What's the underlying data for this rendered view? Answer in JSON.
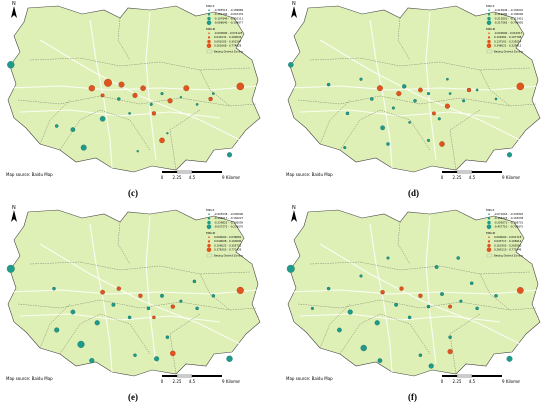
{
  "colors": {
    "land": "#dff0b6",
    "road": "#f2f2d8",
    "boundary": "#444444",
    "teal": "#1e9a8a",
    "orange": "#e2541e"
  },
  "panels": [
    {
      "id": "c",
      "caption": "(c)",
      "source": "Map source: Baidu Map",
      "scale_ticks": [
        "0",
        "2.25",
        "4.5",
        "9 Kilometers"
      ],
      "legend": {
        "title_a": "MRI-II",
        "title_b": "MRI-III",
        "rows": [
          "-0.385515 - -0.189889",
          "-0.191106 - -0.067432",
          "-0.107849 - -0.050111",
          "-0.086640 - -0.104877",
          "-0.000000 - 0.074123",
          "0.041031 - 0.160034",
          "0.091005 - 0.301597",
          "0.261668 - 0.774628"
        ],
        "zone": "Beijing District Zoning"
      }
    },
    {
      "id": "d",
      "caption": "(d)",
      "source": "Map source: Baidu Map",
      "scale_ticks": [
        "0",
        "2.25",
        "4.5",
        "9 Kilometers"
      ],
      "legend": {
        "title_a": "MRI-II",
        "title_b": "MRI-III",
        "rows": [
          "-0.416946 - -0.150001",
          "-0.112080 - -0.100000",
          "-0.210501 - -0.112951",
          "-0.217565 - -0.796950",
          "-0.000000 - 0.010517",
          "0.102981 - 0.107798",
          "0.137501 - 0.235014",
          "0.348021 - 0.329012"
        ],
        "zone": "Beijing District Zoning"
      }
    },
    {
      "id": "e",
      "caption": "(e)",
      "source": "Map source: Baidu Map",
      "scale_ticks": [
        "0",
        "2.25",
        "4.5",
        "9 Kilometers"
      ],
      "legend": {
        "title_a": "MRI-II",
        "title_b": "MRI-III",
        "rows": [
          "-0.905538 - -0.090000",
          "-0.186017 - -0.160227",
          "-0.239823 - -0.185095",
          "-0.037272 - -0.226070",
          "0.000000 - 0.036081",
          "0.040608 - 0.160000",
          "0.109622 - 0.305722",
          "0.378303 - 0.771429"
        ],
        "zone": "Beijing District Zoning"
      }
    },
    {
      "id": "f",
      "caption": "(f)",
      "source": "Map source: Baidu Map",
      "scale_ticks": [
        "0",
        "2.25",
        "4.5",
        "9 Kilometers"
      ],
      "legend": {
        "title_a": "MRI-II",
        "title_b": "MRI-III",
        "rows": [
          "-0.671663 - -0.303845",
          "-0.165723 - -0.163038",
          "-0.205071 - -0.168701",
          "-0.457710 - -0.706875",
          "0.000000 - 0.001718",
          "0.043717 - 0.166914",
          "0.161903 - 0.265560",
          "0.280110 - 0.772049"
        ],
        "zone": "Beijing District Zoning"
      }
    }
  ],
  "north_label": "N",
  "points": {
    "c": {
      "teal": [
        [
          0.04,
          0.36,
          3.5
        ],
        [
          0.27,
          0.72,
          2.2
        ],
        [
          0.31,
          0.82,
          2.8
        ],
        [
          0.38,
          0.66,
          2.6
        ],
        [
          0.44,
          0.55,
          1.6
        ],
        [
          0.48,
          0.63,
          1.2
        ],
        [
          0.56,
          0.58,
          1.4
        ],
        [
          0.6,
          0.52,
          1.4
        ],
        [
          0.67,
          0.54,
          1.0
        ],
        [
          0.73,
          0.58,
          1.2
        ],
        [
          0.79,
          0.52,
          1.2
        ],
        [
          0.85,
          0.86,
          2.4
        ],
        [
          0.21,
          0.7,
          1.6
        ],
        [
          0.51,
          0.84,
          1.0
        ],
        [
          0.62,
          0.74,
          1.0
        ]
      ],
      "orange": [
        [
          0.34,
          0.49,
          3.0
        ],
        [
          0.4,
          0.46,
          3.8
        ],
        [
          0.45,
          0.47,
          2.8
        ],
        [
          0.5,
          0.53,
          2.4
        ],
        [
          0.53,
          0.49,
          2.6
        ],
        [
          0.63,
          0.56,
          2.4
        ],
        [
          0.69,
          0.49,
          2.8
        ],
        [
          0.78,
          0.55,
          2.0
        ],
        [
          0.89,
          0.48,
          3.6
        ],
        [
          0.6,
          0.78,
          2.6
        ],
        [
          0.57,
          0.63,
          2.0
        ],
        [
          0.38,
          0.53,
          1.8
        ]
      ]
    },
    "d": {
      "teal": [
        [
          0.04,
          0.36,
          2.6
        ],
        [
          0.18,
          0.47,
          1.6
        ],
        [
          0.25,
          0.63,
          1.6
        ],
        [
          0.34,
          0.55,
          1.6
        ],
        [
          0.38,
          0.71,
          2.2
        ],
        [
          0.42,
          0.6,
          1.4
        ],
        [
          0.46,
          0.48,
          2.0
        ],
        [
          0.5,
          0.56,
          1.6
        ],
        [
          0.55,
          0.52,
          1.4
        ],
        [
          0.59,
          0.66,
          1.4
        ],
        [
          0.63,
          0.52,
          1.2
        ],
        [
          0.68,
          0.56,
          1.4
        ],
        [
          0.73,
          0.5,
          1.2
        ],
        [
          0.8,
          0.55,
          1.2
        ],
        [
          0.85,
          0.86,
          2.4
        ],
        [
          0.4,
          0.8,
          1.6
        ],
        [
          0.55,
          0.78,
          1.4
        ],
        [
          0.3,
          0.44,
          1.4
        ],
        [
          0.62,
          0.44,
          1.2
        ],
        [
          0.48,
          0.68,
          1.2
        ],
        [
          0.24,
          0.82,
          1.4
        ]
      ],
      "orange": [
        [
          0.37,
          0.49,
          2.8
        ],
        [
          0.44,
          0.52,
          2.4
        ],
        [
          0.52,
          0.5,
          2.2
        ],
        [
          0.62,
          0.59,
          2.4
        ],
        [
          0.89,
          0.48,
          3.6
        ],
        [
          0.6,
          0.8,
          2.6
        ],
        [
          0.57,
          0.63,
          1.8
        ],
        [
          0.7,
          0.5,
          2.0
        ]
      ]
    },
    "e": {
      "teal": [
        [
          0.04,
          0.36,
          3.8
        ],
        [
          0.2,
          0.47,
          1.6
        ],
        [
          0.27,
          0.6,
          2.2
        ],
        [
          0.3,
          0.78,
          3.4
        ],
        [
          0.36,
          0.66,
          2.4
        ],
        [
          0.42,
          0.56,
          1.8
        ],
        [
          0.48,
          0.63,
          1.6
        ],
        [
          0.55,
          0.58,
          1.6
        ],
        [
          0.6,
          0.51,
          1.8
        ],
        [
          0.67,
          0.54,
          1.4
        ],
        [
          0.73,
          0.58,
          1.6
        ],
        [
          0.79,
          0.51,
          1.6
        ],
        [
          0.85,
          0.86,
          3.0
        ],
        [
          0.21,
          0.7,
          2.4
        ],
        [
          0.5,
          0.84,
          1.6
        ],
        [
          0.62,
          0.74,
          1.6
        ],
        [
          0.34,
          0.87,
          2.4
        ],
        [
          0.58,
          0.86,
          2.4
        ],
        [
          0.72,
          0.43,
          1.6
        ]
      ],
      "orange": [
        [
          0.38,
          0.49,
          2.2
        ],
        [
          0.44,
          0.47,
          2.0
        ],
        [
          0.52,
          0.51,
          2.0
        ],
        [
          0.64,
          0.57,
          2.0
        ],
        [
          0.89,
          0.48,
          3.4
        ],
        [
          0.64,
          0.83,
          2.6
        ],
        [
          0.57,
          0.63,
          1.6
        ]
      ]
    },
    "f": {
      "teal": [
        [
          0.04,
          0.36,
          3.8
        ],
        [
          0.18,
          0.47,
          1.6
        ],
        [
          0.26,
          0.6,
          2.4
        ],
        [
          0.31,
          0.8,
          3.0
        ],
        [
          0.36,
          0.66,
          2.4
        ],
        [
          0.43,
          0.56,
          1.8
        ],
        [
          0.48,
          0.63,
          1.6
        ],
        [
          0.55,
          0.57,
          1.6
        ],
        [
          0.6,
          0.5,
          1.8
        ],
        [
          0.67,
          0.54,
          1.4
        ],
        [
          0.73,
          0.58,
          1.6
        ],
        [
          0.8,
          0.51,
          1.6
        ],
        [
          0.85,
          0.86,
          2.8
        ],
        [
          0.22,
          0.7,
          2.2
        ],
        [
          0.52,
          0.84,
          1.6
        ],
        [
          0.63,
          0.74,
          1.6
        ],
        [
          0.37,
          0.87,
          2.2
        ],
        [
          0.56,
          0.9,
          2.4
        ],
        [
          0.71,
          0.44,
          1.6
        ],
        [
          0.58,
          0.35,
          1.8
        ],
        [
          0.66,
          0.3,
          1.6
        ],
        [
          0.4,
          0.3,
          1.4
        ],
        [
          0.3,
          0.4,
          1.4
        ],
        [
          0.12,
          0.58,
          1.4
        ]
      ],
      "orange": [
        [
          0.38,
          0.49,
          2.0
        ],
        [
          0.45,
          0.47,
          2.0
        ],
        [
          0.52,
          0.51,
          2.0
        ],
        [
          0.63,
          0.57,
          1.8
        ],
        [
          0.89,
          0.48,
          3.2
        ],
        [
          0.63,
          0.82,
          2.4
        ]
      ]
    }
  }
}
